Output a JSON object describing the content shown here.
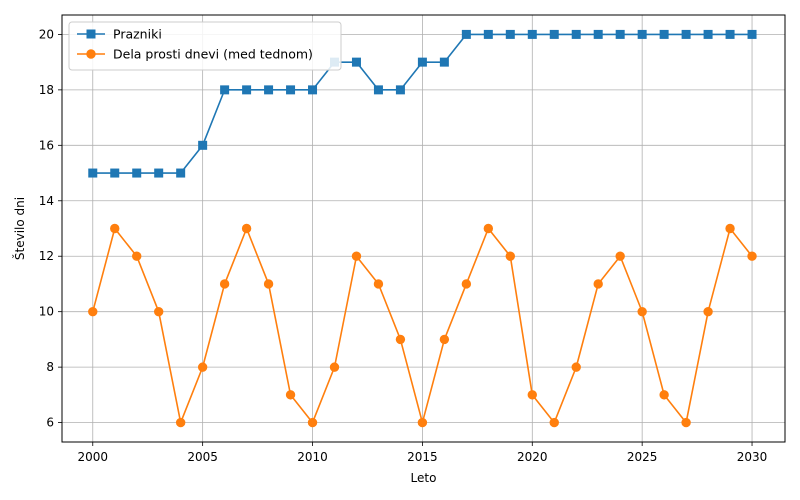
{
  "chart_data": {
    "type": "line",
    "xlabel": "Leto",
    "ylabel": "Število dni",
    "xlim": [
      1998.6,
      2031.5
    ],
    "ylim": [
      5.3,
      20.7
    ],
    "xticks": [
      2000,
      2005,
      2010,
      2015,
      2020,
      2025,
      2030
    ],
    "yticks": [
      6,
      8,
      10,
      12,
      14,
      16,
      18,
      20
    ],
    "grid": true,
    "legend_position": "top-left",
    "x": [
      2000,
      2001,
      2002,
      2003,
      2004,
      2005,
      2006,
      2007,
      2008,
      2009,
      2010,
      2011,
      2012,
      2013,
      2014,
      2015,
      2016,
      2017,
      2018,
      2019,
      2020,
      2021,
      2022,
      2023,
      2024,
      2025,
      2026,
      2027,
      2028,
      2029,
      2030
    ],
    "series": [
      {
        "name": "Prazniki",
        "marker": "square",
        "color": "#1f77b4",
        "values": [
          15,
          15,
          15,
          15,
          15,
          16,
          18,
          18,
          18,
          18,
          18,
          19,
          19,
          18,
          18,
          19,
          19,
          20,
          20,
          20,
          20,
          20,
          20,
          20,
          20,
          20,
          20,
          20,
          20,
          20,
          20
        ]
      },
      {
        "name": "Dela prosti dnevi (med tednom)",
        "marker": "circle",
        "color": "#ff7f0e",
        "values": [
          10,
          13,
          12,
          10,
          6,
          8,
          11,
          13,
          11,
          7,
          6,
          8,
          12,
          11,
          9,
          6,
          9,
          11,
          13,
          12,
          7,
          6,
          8,
          11,
          12,
          10,
          7,
          6,
          10,
          13,
          12
        ]
      }
    ]
  }
}
